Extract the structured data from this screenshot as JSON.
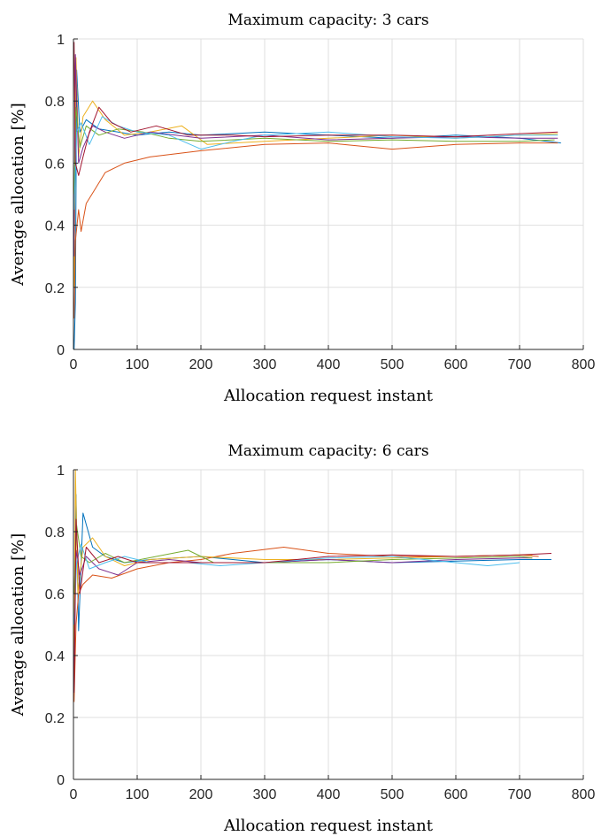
{
  "chart_data": [
    {
      "type": "line",
      "title": "Maximum capacity: 3 cars",
      "xlabel": "Allocation request instant",
      "ylabel": "Average allocation [%]",
      "xlim": [
        0,
        800
      ],
      "ylim": [
        0,
        1
      ],
      "xticks": [
        0,
        100,
        200,
        300,
        400,
        500,
        600,
        700,
        800
      ],
      "yticks": [
        0,
        0.2,
        0.4,
        0.6,
        0.8,
        1
      ],
      "grid": true,
      "series": [
        {
          "color": "#0072BD",
          "points": [
            [
              1,
              0.0
            ],
            [
              3,
              0.15
            ],
            [
              5,
              0.9
            ],
            [
              10,
              0.7
            ],
            [
              20,
              0.74
            ],
            [
              40,
              0.71
            ],
            [
              70,
              0.7
            ],
            [
              100,
              0.69
            ],
            [
              150,
              0.7
            ],
            [
              200,
              0.69
            ],
            [
              300,
              0.7
            ],
            [
              400,
              0.69
            ],
            [
              500,
              0.68
            ],
            [
              600,
              0.69
            ],
            [
              700,
              0.68
            ],
            [
              765,
              0.665
            ]
          ]
        },
        {
          "color": "#D95319",
          "points": [
            [
              1,
              0.1
            ],
            [
              3,
              0.35
            ],
            [
              8,
              0.45
            ],
            [
              12,
              0.38
            ],
            [
              20,
              0.47
            ],
            [
              35,
              0.52
            ],
            [
              50,
              0.57
            ],
            [
              80,
              0.6
            ],
            [
              120,
              0.62
            ],
            [
              160,
              0.63
            ],
            [
              200,
              0.64
            ],
            [
              300,
              0.66
            ],
            [
              400,
              0.665
            ],
            [
              500,
              0.645
            ],
            [
              600,
              0.66
            ],
            [
              700,
              0.665
            ],
            [
              760,
              0.665
            ]
          ]
        },
        {
          "color": "#EDB120",
          "points": [
            [
              1,
              0.2
            ],
            [
              4,
              0.94
            ],
            [
              8,
              0.62
            ],
            [
              15,
              0.75
            ],
            [
              30,
              0.8
            ],
            [
              50,
              0.74
            ],
            [
              80,
              0.69
            ],
            [
              120,
              0.7
            ],
            [
              170,
              0.72
            ],
            [
              210,
              0.66
            ],
            [
              300,
              0.67
            ],
            [
              400,
              0.68
            ],
            [
              500,
              0.69
            ],
            [
              600,
              0.68
            ],
            [
              700,
              0.69
            ],
            [
              760,
              0.695
            ]
          ]
        },
        {
          "color": "#7E2F8E",
          "points": [
            [
              1,
              0.3
            ],
            [
              3,
              0.95
            ],
            [
              8,
              0.6
            ],
            [
              15,
              0.65
            ],
            [
              30,
              0.72
            ],
            [
              50,
              0.7
            ],
            [
              80,
              0.68
            ],
            [
              120,
              0.7
            ],
            [
              200,
              0.68
            ],
            [
              300,
              0.69
            ],
            [
              400,
              0.675
            ],
            [
              500,
              0.68
            ],
            [
              600,
              0.685
            ],
            [
              700,
              0.68
            ],
            [
              760,
              0.68
            ]
          ]
        },
        {
          "color": "#77AC30",
          "points": [
            [
              1,
              0.5
            ],
            [
              4,
              0.78
            ],
            [
              10,
              0.65
            ],
            [
              20,
              0.72
            ],
            [
              40,
              0.69
            ],
            [
              70,
              0.71
            ],
            [
              110,
              0.7
            ],
            [
              150,
              0.68
            ],
            [
              200,
              0.67
            ],
            [
              300,
              0.68
            ],
            [
              400,
              0.67
            ],
            [
              500,
              0.675
            ],
            [
              600,
              0.67
            ],
            [
              700,
              0.67
            ],
            [
              755,
              0.675
            ]
          ]
        },
        {
          "color": "#4DBEEE",
          "points": [
            [
              1,
              0.45
            ],
            [
              5,
              0.7
            ],
            [
              12,
              0.73
            ],
            [
              25,
              0.66
            ],
            [
              45,
              0.75
            ],
            [
              70,
              0.72
            ],
            [
              100,
              0.7
            ],
            [
              150,
              0.69
            ],
            [
              200,
              0.645
            ],
            [
              250,
              0.67
            ],
            [
              300,
              0.69
            ],
            [
              400,
              0.7
            ],
            [
              500,
              0.685
            ],
            [
              600,
              0.68
            ],
            [
              700,
              0.69
            ],
            [
              760,
              0.69
            ]
          ]
        },
        {
          "color": "#A2142F",
          "points": [
            [
              1,
              0.99
            ],
            [
              3,
              0.6
            ],
            [
              8,
              0.56
            ],
            [
              15,
              0.62
            ],
            [
              25,
              0.7
            ],
            [
              40,
              0.78
            ],
            [
              60,
              0.73
            ],
            [
              90,
              0.7
            ],
            [
              130,
              0.72
            ],
            [
              180,
              0.69
            ],
            [
              250,
              0.69
            ],
            [
              300,
              0.685
            ],
            [
              400,
              0.69
            ],
            [
              500,
              0.69
            ],
            [
              600,
              0.685
            ],
            [
              700,
              0.695
            ],
            [
              760,
              0.7
            ]
          ]
        }
      ]
    },
    {
      "type": "line",
      "title": "Maximum capacity: 6 cars",
      "xlabel": "Allocation request instant",
      "ylabel": "Average allocation [%]",
      "xlim": [
        0,
        800
      ],
      "ylim": [
        0,
        1
      ],
      "xticks": [
        0,
        100,
        200,
        300,
        400,
        500,
        600,
        700,
        800
      ],
      "yticks": [
        0,
        0.2,
        0.4,
        0.6,
        0.8,
        1
      ],
      "grid": true,
      "series": [
        {
          "color": "#0072BD",
          "points": [
            [
              1,
              0.3
            ],
            [
              4,
              0.92
            ],
            [
              8,
              0.48
            ],
            [
              15,
              0.86
            ],
            [
              30,
              0.75
            ],
            [
              50,
              0.72
            ],
            [
              80,
              0.7
            ],
            [
              120,
              0.71
            ],
            [
              200,
              0.72
            ],
            [
              300,
              0.7
            ],
            [
              400,
              0.71
            ],
            [
              500,
              0.7
            ],
            [
              600,
              0.705
            ],
            [
              700,
              0.71
            ],
            [
              750,
              0.71
            ]
          ]
        },
        {
          "color": "#D95319",
          "points": [
            [
              1,
              0.25
            ],
            [
              4,
              0.5
            ],
            [
              8,
              0.6
            ],
            [
              15,
              0.63
            ],
            [
              30,
              0.66
            ],
            [
              60,
              0.65
            ],
            [
              100,
              0.68
            ],
            [
              150,
              0.7
            ],
            [
              200,
              0.71
            ],
            [
              250,
              0.73
            ],
            [
              330,
              0.75
            ],
            [
              400,
              0.73
            ],
            [
              500,
              0.72
            ],
            [
              600,
              0.72
            ],
            [
              700,
              0.725
            ],
            [
              730,
              0.72
            ]
          ]
        },
        {
          "color": "#EDB120",
          "points": [
            [
              1,
              0.4
            ],
            [
              3,
              1.0
            ],
            [
              7,
              0.6
            ],
            [
              15,
              0.75
            ],
            [
              30,
              0.78
            ],
            [
              50,
              0.72
            ],
            [
              80,
              0.69
            ],
            [
              120,
              0.71
            ],
            [
              200,
              0.72
            ],
            [
              300,
              0.71
            ],
            [
              400,
              0.71
            ],
            [
              500,
              0.715
            ],
            [
              600,
              0.72
            ],
            [
              700,
              0.725
            ],
            [
              720,
              0.725
            ]
          ]
        },
        {
          "color": "#7E2F8E",
          "points": [
            [
              1,
              0.3
            ],
            [
              4,
              0.74
            ],
            [
              10,
              0.66
            ],
            [
              20,
              0.72
            ],
            [
              40,
              0.68
            ],
            [
              70,
              0.66
            ],
            [
              100,
              0.7
            ],
            [
              150,
              0.71
            ],
            [
              200,
              0.7
            ],
            [
              300,
              0.7
            ],
            [
              400,
              0.71
            ],
            [
              500,
              0.7
            ],
            [
              600,
              0.71
            ],
            [
              700,
              0.715
            ],
            [
              720,
              0.715
            ]
          ]
        },
        {
          "color": "#77AC30",
          "points": [
            [
              1,
              0.6
            ],
            [
              5,
              0.82
            ],
            [
              12,
              0.72
            ],
            [
              25,
              0.7
            ],
            [
              50,
              0.73
            ],
            [
              80,
              0.7
            ],
            [
              130,
              0.72
            ],
            [
              180,
              0.74
            ],
            [
              220,
              0.7
            ],
            [
              300,
              0.7
            ],
            [
              400,
              0.7
            ],
            [
              500,
              0.71
            ],
            [
              600,
              0.715
            ],
            [
              700,
              0.72
            ],
            [
              720,
              0.715
            ]
          ]
        },
        {
          "color": "#4DBEEE",
          "points": [
            [
              1,
              0.5
            ],
            [
              5,
              0.7
            ],
            [
              12,
              0.76
            ],
            [
              25,
              0.68
            ],
            [
              50,
              0.7
            ],
            [
              80,
              0.72
            ],
            [
              120,
              0.7
            ],
            [
              180,
              0.7
            ],
            [
              230,
              0.69
            ],
            [
              300,
              0.7
            ],
            [
              400,
              0.715
            ],
            [
              500,
              0.72
            ],
            [
              600,
              0.7
            ],
            [
              650,
              0.69
            ],
            [
              700,
              0.7
            ]
          ]
        },
        {
          "color": "#A2142F",
          "points": [
            [
              1,
              0.28
            ],
            [
              4,
              0.84
            ],
            [
              10,
              0.6
            ],
            [
              20,
              0.75
            ],
            [
              40,
              0.7
            ],
            [
              70,
              0.72
            ],
            [
              100,
              0.7
            ],
            [
              150,
              0.7
            ],
            [
              200,
              0.7
            ],
            [
              300,
              0.7
            ],
            [
              400,
              0.72
            ],
            [
              500,
              0.725
            ],
            [
              600,
              0.72
            ],
            [
              700,
              0.725
            ],
            [
              750,
              0.73
            ]
          ]
        }
      ]
    }
  ]
}
